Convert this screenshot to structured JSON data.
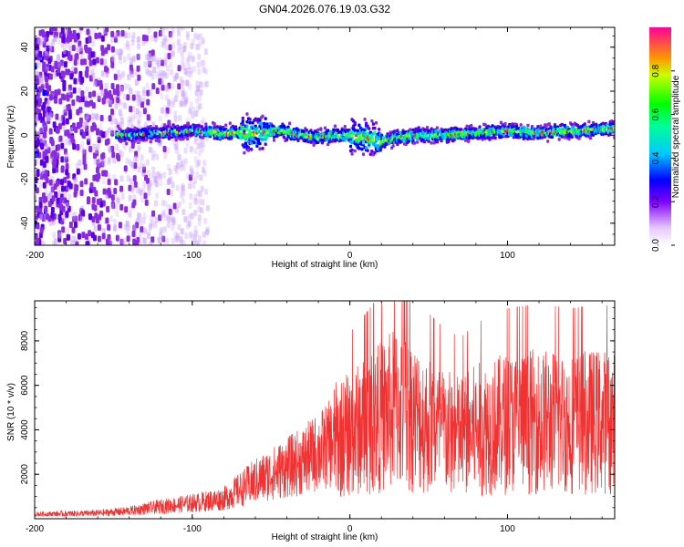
{
  "chart_data": [
    {
      "type": "heatmap",
      "title": "GN04.2026.076.19.03.G32",
      "xlabel": "Height of straight line (km)",
      "ylabel": "Frequency (Hz)",
      "xlim": [
        -200,
        168
      ],
      "ylim": [
        -50,
        49
      ],
      "xticks": [
        -200,
        -100,
        0,
        100
      ],
      "yticks": [
        -40,
        -20,
        0,
        20,
        40
      ],
      "colorbar": {
        "label": "Normalized spectral amplitude",
        "range": [
          0,
          1
        ],
        "ticks": [
          0.0,
          0.2,
          0.4,
          0.6,
          0.8
        ],
        "tick_labels": [
          "0.0",
          "0.2",
          "0.4",
          "0.6",
          "0.8"
        ]
      },
      "ridge": {
        "x": [
          -145,
          -120,
          -100,
          -80,
          -60,
          -45,
          -30,
          -20,
          -10,
          0,
          10,
          20,
          30,
          45,
          60,
          80,
          100,
          120,
          140,
          168
        ],
        "y": [
          0,
          1,
          2,
          1,
          1,
          2,
          0,
          -1,
          0,
          0,
          -1,
          -3,
          -1,
          0,
          0,
          1,
          2,
          1,
          2,
          3
        ]
      },
      "noise_region": [
        -200,
        -90
      ]
    },
    {
      "type": "line",
      "xlabel": "Height of straight line (km)",
      "ylabel": "SNR (10 * v/v)",
      "xlim": [
        -200,
        168
      ],
      "ylim": [
        0,
        9800
      ],
      "xticks": [
        -200,
        -100,
        0,
        100
      ],
      "yticks": [
        2000,
        4000,
        6000,
        8000
      ],
      "color": "#f03232",
      "envelope": {
        "x": [
          -200,
          -160,
          -140,
          -120,
          -100,
          -80,
          -70,
          -60,
          -50,
          -40,
          -30,
          -20,
          -10,
          0,
          10,
          20,
          30,
          40,
          50,
          60,
          70,
          80,
          100,
          120,
          140,
          160,
          168
        ],
        "y": [
          200,
          250,
          350,
          550,
          700,
          900,
          1300,
          1700,
          2000,
          2300,
          2600,
          3000,
          3500,
          3800,
          4200,
          4600,
          5000,
          4600,
          4200,
          3900,
          3700,
          4000,
          4300,
          4400,
          4300,
          4400,
          4300
        ]
      }
    }
  ]
}
